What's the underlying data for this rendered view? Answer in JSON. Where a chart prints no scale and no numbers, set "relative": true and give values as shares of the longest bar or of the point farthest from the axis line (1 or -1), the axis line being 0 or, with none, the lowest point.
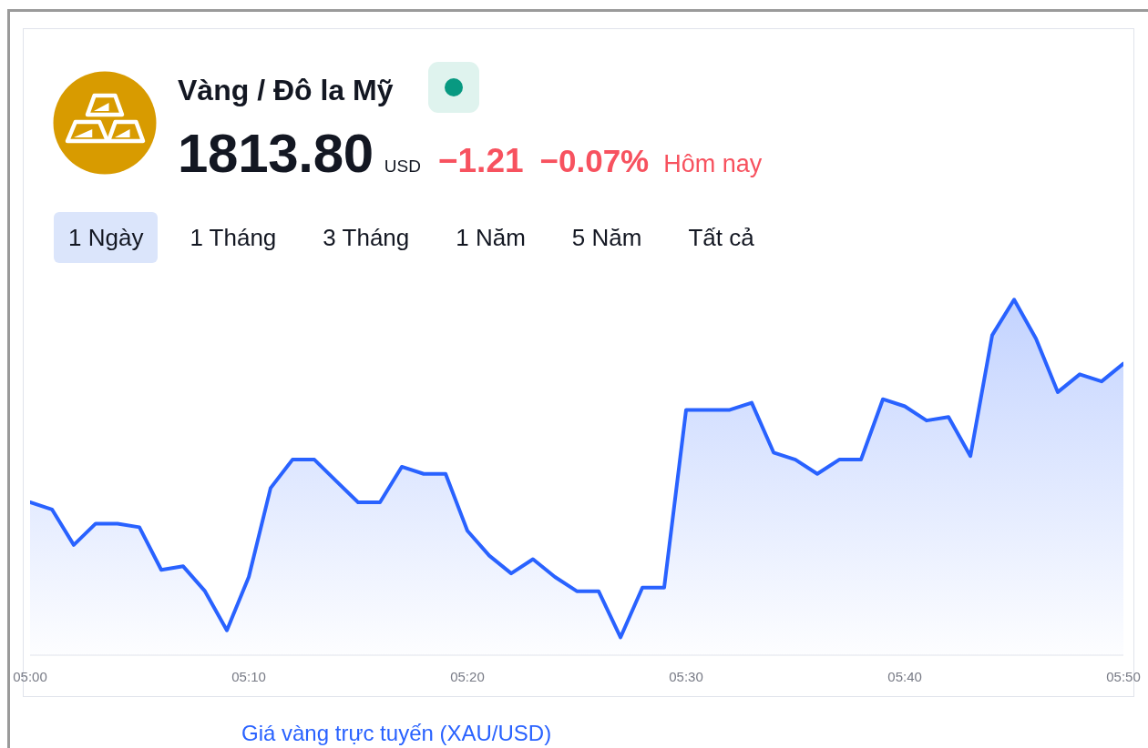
{
  "chart_data": {
    "type": "area",
    "title": "Vàng / Đô la Mỹ",
    "annotations": [
      "1813.80",
      "USD",
      "−1.21",
      "−0.07%",
      "Hôm nay",
      "1 Ngày",
      "1 Tháng",
      "3 Tháng",
      "1 Năm",
      "5 Năm",
      "Tất cả",
      "Giá vàng trực tuyến (XAU/USD)"
    ],
    "x": [
      5,
      5.0167,
      5.0333,
      5.05,
      5.0667,
      5.0833,
      5.1,
      5.1167,
      5.1333,
      5.15,
      5.1667,
      5.1833,
      5.2,
      5.2167,
      5.2333,
      5.25,
      5.2667,
      5.2833,
      5.3,
      5.3167,
      5.3333,
      5.35,
      5.3667,
      5.3833,
      5.4,
      5.4167,
      5.4333,
      5.45,
      5.4667,
      5.4833,
      5.5,
      5.5167,
      5.5333,
      5.55,
      5.5667,
      5.5833,
      5.6,
      5.6167,
      5.6333,
      5.65,
      5.6667,
      5.6833,
      5.7,
      5.7167,
      5.7333,
      5.75,
      5.7667,
      5.7833,
      5.8,
      5.8167,
      5.8333
    ],
    "values": [
      0.43,
      0.41,
      0.31,
      0.37,
      0.37,
      0.36,
      0.24,
      0.25,
      0.18,
      0.07,
      0.22,
      0.47,
      0.55,
      0.55,
      0.49,
      0.43,
      0.43,
      0.53,
      0.51,
      0.51,
      0.35,
      0.28,
      0.23,
      0.27,
      0.22,
      0.18,
      0.18,
      0.05,
      0.19,
      0.19,
      0.69,
      0.69,
      0.69,
      0.71,
      0.57,
      0.55,
      0.51,
      0.55,
      0.55,
      0.72,
      0.7,
      0.66,
      0.67,
      0.56,
      0.9,
      1,
      0.89,
      0.74,
      0.79,
      0.77,
      0.82
    ],
    "color": "#2962ff",
    "relative": true,
    "xlim": [
      5,
      5.8333
    ],
    "xticks": [
      {
        "value": 5,
        "label": "05:00"
      },
      {
        "value": 5.1667,
        "label": "05:10"
      },
      {
        "value": 5.3333,
        "label": "05:20"
      },
      {
        "value": 5.5,
        "label": "05:30"
      },
      {
        "value": 5.6667,
        "label": "05:40"
      },
      {
        "value": 5.8333,
        "label": "05:50"
      }
    ]
  }
}
